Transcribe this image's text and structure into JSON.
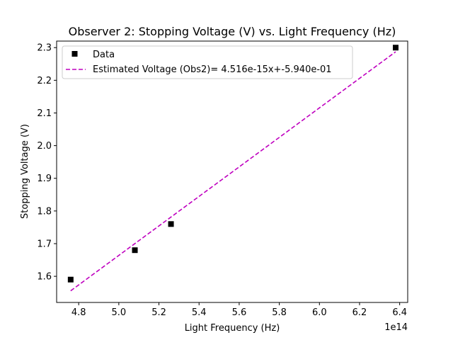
{
  "chart_data": {
    "type": "scatter",
    "title": "Observer 2: Stopping Voltage (V) vs. Light Frequency (Hz)",
    "xlabel": "Light Frequency (Hz)",
    "ylabel": "Stopping Voltage (V)",
    "x_offset_label": "1e14",
    "xlim": [
      4.69,
      6.44
    ],
    "ylim": [
      1.52,
      2.32
    ],
    "x_ticks": [
      4.8,
      5.0,
      5.2,
      5.4,
      5.6,
      5.8,
      6.0,
      6.2,
      6.4
    ],
    "x_tick_labels": [
      "4.8",
      "5.0",
      "5.2",
      "5.4",
      "5.6",
      "5.8",
      "6.0",
      "6.2",
      "6.4"
    ],
    "y_ticks": [
      1.6,
      1.7,
      1.8,
      1.9,
      2.0,
      2.1,
      2.2,
      2.3
    ],
    "y_tick_labels": [
      "1.6",
      "1.7",
      "1.8",
      "1.9",
      "2.0",
      "2.1",
      "2.2",
      "2.3"
    ],
    "grid": false,
    "legend_position": "top-left",
    "series": [
      {
        "name": "Data",
        "kind": "markers",
        "marker": "square",
        "color": "#000000",
        "x": [
          4.76,
          5.08,
          5.26,
          6.38
        ],
        "y": [
          1.59,
          1.68,
          1.76,
          2.3
        ]
      },
      {
        "name": "Estimated Voltage (Obs2)= 4.516e-15x+-5.940e-01",
        "kind": "line",
        "style": "dashed",
        "color": "#bf00bf",
        "x": [
          4.76,
          6.38
        ],
        "y": [
          1.5556,
          2.2872
        ]
      }
    ]
  }
}
